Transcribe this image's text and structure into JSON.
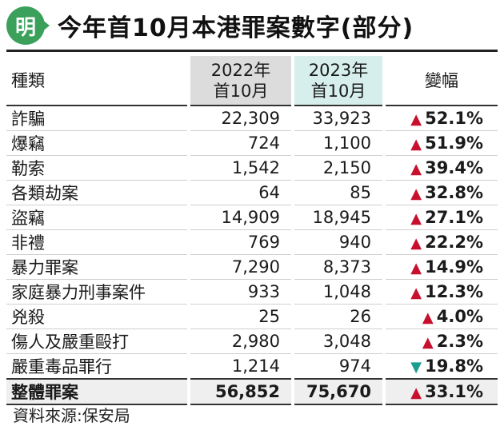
{
  "header": {
    "logo_text": "明",
    "title": "今年首10月本港罪案數字(部分)"
  },
  "colors": {
    "up": "#c8102e",
    "down": "#1a9e8f",
    "col2022_bg": "#dcdcdc",
    "col2023_bg": "#d6efec",
    "logo": "#3aa05a"
  },
  "table": {
    "headers": {
      "type": "種類",
      "y2022_line1": "2022年",
      "y2022_line2": "首10月",
      "y2023_line1": "2023年",
      "y2023_line2": "首10月",
      "change": "變幅"
    },
    "rows": [
      {
        "type": "詐騙",
        "y2022": "22,309",
        "y2023": "33,923",
        "arrow": "▲",
        "change": "52.1%"
      },
      {
        "type": "爆竊",
        "y2022": "724",
        "y2023": "1,100",
        "arrow": "▲",
        "change": "51.9%"
      },
      {
        "type": "勒索",
        "y2022": "1,542",
        "y2023": "2,150",
        "arrow": "▲",
        "change": "39.4%"
      },
      {
        "type": "各類劫案",
        "y2022": "64",
        "y2023": "85",
        "arrow": "▲",
        "change": "32.8%"
      },
      {
        "type": "盜竊",
        "y2022": "14,909",
        "y2023": "18,945",
        "arrow": "▲",
        "change": "27.1%"
      },
      {
        "type": "非禮",
        "y2022": "769",
        "y2023": "940",
        "arrow": "▲",
        "change": "22.2%"
      },
      {
        "type": "暴力罪案",
        "y2022": "7,290",
        "y2023": "8,373",
        "arrow": "▲",
        "change": "14.9%"
      },
      {
        "type": "家庭暴力刑事案件",
        "y2022": "933",
        "y2023": "1,048",
        "arrow": "▲",
        "change": "12.3%"
      },
      {
        "type": "兇殺",
        "y2022": "25",
        "y2023": "26",
        "arrow": "▲",
        "change": "4.0%"
      },
      {
        "type": "傷人及嚴重毆打",
        "y2022": "2,980",
        "y2023": "3,048",
        "arrow": "▲",
        "change": "2.3%"
      },
      {
        "type": "嚴重毒品罪行",
        "y2022": "1,214",
        "y2023": "974",
        "arrow": "▼",
        "change": "19.8%"
      }
    ],
    "total": {
      "type": "整體罪案",
      "y2022": "56,852",
      "y2023": "75,670",
      "arrow": "▲",
      "change": "33.1%"
    }
  },
  "source": "資料來源:保安局"
}
